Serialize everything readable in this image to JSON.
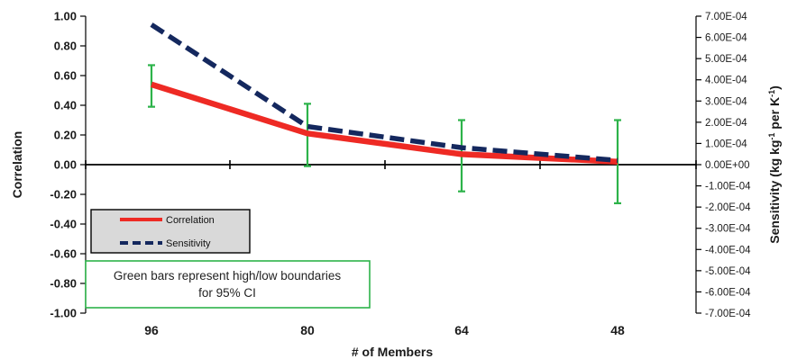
{
  "chart_data": {
    "type": "line",
    "xlabel": "# of Members",
    "categories": [
      "96",
      "80",
      "64",
      "48"
    ],
    "ylabel_left": "Correlation",
    "ylabel_right": "Sensitivity (kg kg-1 per K-1)",
    "ylim_left": [
      -1.0,
      1.0
    ],
    "ylim_right": [
      -0.0007,
      0.0007
    ],
    "yticks_left": [
      "1.00",
      "0.80",
      "0.60",
      "0.40",
      "0.20",
      "0.00",
      "-0.20",
      "-0.40",
      "-0.60",
      "-0.80",
      "-1.00"
    ],
    "yticks_right": [
      "7.00E-04",
      "6.00E-04",
      "5.00E-04",
      "4.00E-04",
      "3.00E-04",
      "2.00E-04",
      "1.00E-04",
      "0.00E+00",
      "-1.00E-04",
      "-2.00E-04",
      "-3.00E-04",
      "-4.00E-04",
      "-5.00E-04",
      "-6.00E-04",
      "-7.00E-04"
    ],
    "series": [
      {
        "name": "Correlation",
        "axis": "left",
        "color": "#ee2a24",
        "style": "solid",
        "values": [
          0.54,
          0.21,
          0.07,
          0.02
        ]
      },
      {
        "name": "Sensitivity",
        "axis": "right",
        "color": "#14285e",
        "style": "dashed",
        "values": [
          0.00066,
          0.00018,
          8e-05,
          2e-05
        ]
      }
    ],
    "error_bars": {
      "color": "#2db34a",
      "low": [
        0.39,
        -0.01,
        -0.18,
        -0.26
      ],
      "high": [
        0.67,
        0.41,
        0.3,
        0.3
      ]
    },
    "legend": {
      "placement": "lower-left",
      "entries": [
        "Correlation",
        "Sensitivity"
      ]
    },
    "annotation": {
      "line1": "Green bars represent  high/low boundaries",
      "line2": "for 95% CI",
      "border_color": "#2db34a"
    },
    "grid": false
  }
}
